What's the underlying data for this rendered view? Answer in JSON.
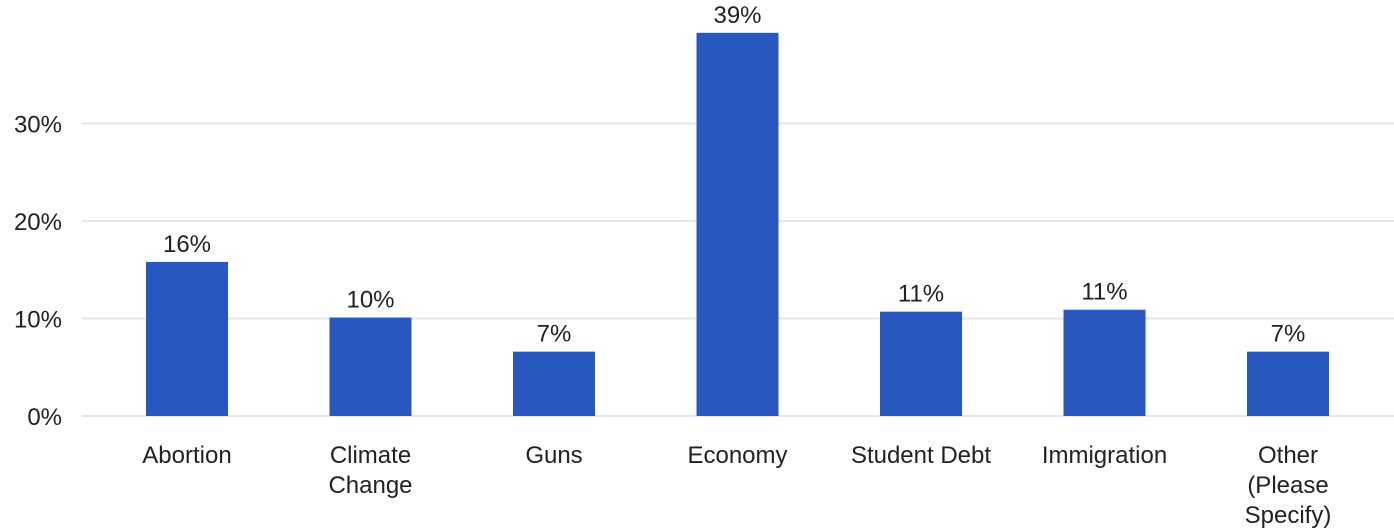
{
  "chart_data": {
    "type": "bar",
    "title": "",
    "xlabel": "",
    "ylabel": "",
    "categories": [
      [
        "Abortion"
      ],
      [
        "Climate",
        "Change"
      ],
      [
        "Guns"
      ],
      [
        "Economy"
      ],
      [
        "Student Debt"
      ],
      [
        "Immigration"
      ],
      [
        "Other",
        "(Please",
        "Specify)"
      ]
    ],
    "values": [
      15.8,
      10.1,
      6.6,
      39.3,
      10.7,
      10.9,
      6.6
    ],
    "value_labels": [
      "16%",
      "10%",
      "7%",
      "39%",
      "11%",
      "11%",
      "7%"
    ],
    "ylim": [
      0,
      40
    ],
    "yticks": [
      0,
      10,
      20,
      30
    ],
    "ytick_labels": [
      "0%",
      "10%",
      "20%",
      "30%"
    ],
    "grid": true,
    "bar_color": "#2858bd"
  }
}
